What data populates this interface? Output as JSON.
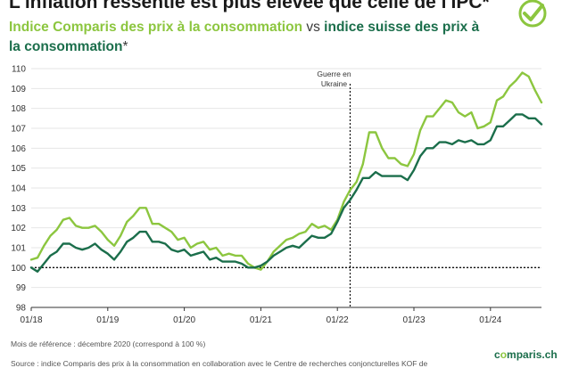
{
  "header": {
    "title": "L'inflation ressentie est plus élevée que celle de l'IPC*",
    "subtitle_a": "Indice Comparis des prix à la consommation",
    "subtitle_vs": " vs ",
    "subtitle_b": "indice suisse des prix à la consommation",
    "subtitle_star": "*"
  },
  "icons": {
    "top_right": "check-circle-icon"
  },
  "colors": {
    "comparis": "#8cc63f",
    "ipc": "#1b6e4b",
    "reference": "#111111"
  },
  "chart_data": {
    "type": "line",
    "x_start": "2018-01",
    "x_end": "2024-09",
    "ylim": [
      98,
      110
    ],
    "yticks": [
      98,
      99,
      100,
      101,
      102,
      103,
      104,
      105,
      106,
      107,
      108,
      109,
      110
    ],
    "xticks": [
      {
        "label": "01/18",
        "month_index": 0
      },
      {
        "label": "01/19",
        "month_index": 12
      },
      {
        "label": "01/20",
        "month_index": 24
      },
      {
        "label": "01/21",
        "month_index": 36
      },
      {
        "label": "01/22",
        "month_index": 48
      },
      {
        "label": "01/23",
        "month_index": 60
      },
      {
        "label": "01/24",
        "month_index": 72
      }
    ],
    "reference_line": 100,
    "annotation": {
      "text_lines": [
        "Guerre en",
        "Ukraine"
      ],
      "month_index": 50
    },
    "series": [
      {
        "name": "Indice Comparis des prix à la consommation",
        "color": "#8cc63f",
        "values": [
          100.4,
          100.5,
          101.1,
          101.6,
          101.9,
          102.4,
          102.5,
          102.1,
          102.0,
          102.0,
          102.1,
          101.8,
          101.4,
          101.1,
          101.6,
          102.3,
          102.6,
          103.0,
          103.0,
          102.2,
          102.2,
          102.0,
          101.8,
          101.4,
          101.5,
          101.0,
          101.2,
          101.3,
          100.9,
          101.0,
          100.6,
          100.7,
          100.6,
          100.6,
          100.2,
          100.0,
          99.9,
          100.3,
          100.8,
          101.1,
          101.4,
          101.5,
          101.7,
          101.8,
          102.2,
          102.0,
          102.1,
          101.9,
          102.4,
          103.3,
          103.9,
          104.3,
          105.2,
          106.8,
          106.8,
          106.0,
          105.5,
          105.5,
          105.2,
          105.1,
          105.7,
          106.9,
          107.6,
          107.6,
          108.0,
          108.4,
          108.3,
          107.8,
          107.6,
          107.8,
          107.0,
          107.1,
          107.3,
          108.4,
          108.6,
          109.1,
          109.4,
          109.8,
          109.6,
          108.9,
          108.3
        ]
      },
      {
        "name": "indice suisse des prix à la consommation",
        "color": "#1b6e4b",
        "values": [
          100.0,
          99.8,
          100.2,
          100.6,
          100.8,
          101.2,
          101.2,
          101.0,
          100.9,
          101.0,
          101.2,
          100.9,
          100.7,
          100.4,
          100.8,
          101.3,
          101.5,
          101.8,
          101.8,
          101.3,
          101.3,
          101.2,
          100.9,
          100.8,
          100.9,
          100.6,
          100.7,
          100.8,
          100.4,
          100.5,
          100.3,
          100.3,
          100.3,
          100.2,
          100.0,
          100.0,
          100.1,
          100.3,
          100.6,
          100.8,
          101.0,
          101.1,
          101.0,
          101.3,
          101.6,
          101.5,
          101.5,
          101.7,
          102.3,
          103.0,
          103.4,
          103.9,
          104.5,
          104.5,
          104.8,
          104.6,
          104.6,
          104.6,
          104.6,
          104.4,
          104.9,
          105.6,
          106.0,
          106.0,
          106.3,
          106.3,
          106.2,
          106.4,
          106.3,
          106.4,
          106.2,
          106.2,
          106.4,
          107.1,
          107.1,
          107.4,
          107.7,
          107.7,
          107.5,
          107.5,
          107.2
        ]
      }
    ]
  },
  "footer": {
    "reference_note": "Mois de référence : décembre 2020 (correspond à 100 %)",
    "source": "Source : indice Comparis des prix à la consommation en collaboration avec le Centre de recherches conjoncturelles KOF de",
    "logo_a": "c",
    "logo_o": "o",
    "logo_b": "mparis.ch"
  }
}
